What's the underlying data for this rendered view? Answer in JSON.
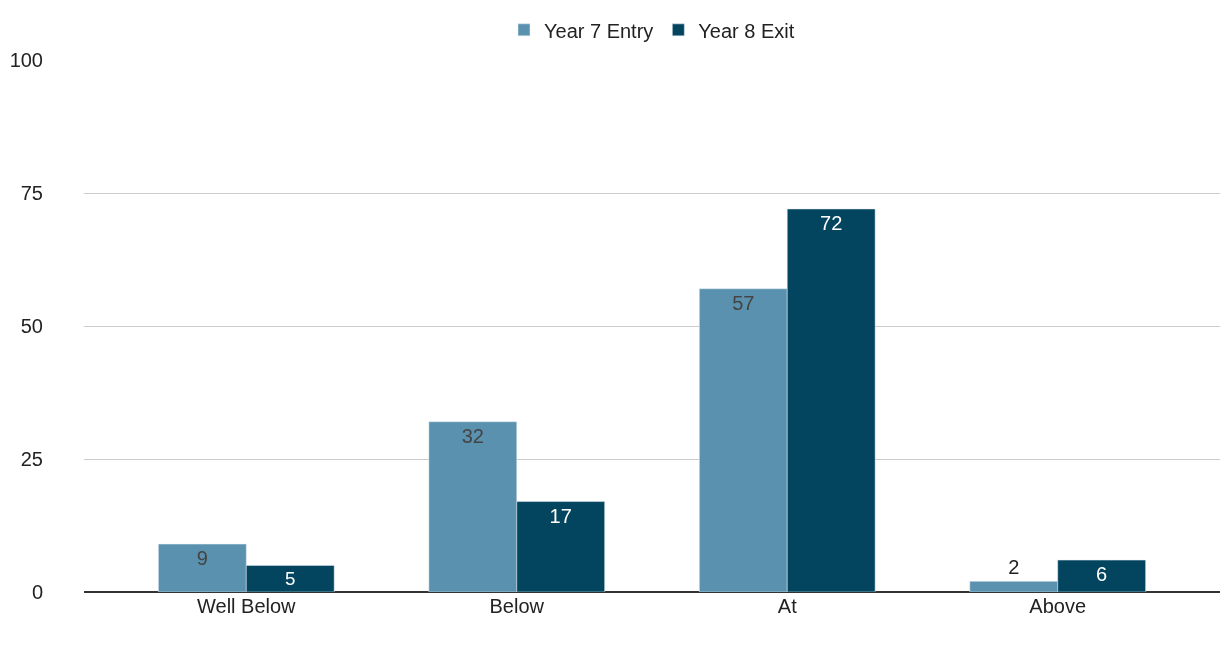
{
  "chart_data": {
    "type": "bar",
    "categories": [
      "Well Below",
      "Below",
      "At",
      "Above"
    ],
    "series": [
      {
        "name": "Year 7 Entry",
        "color": "#5a91ae",
        "values": [
          9,
          32,
          57,
          2
        ]
      },
      {
        "name": "Year 8 Exit",
        "color": "#03455f",
        "values": [
          5,
          17,
          72,
          6
        ]
      }
    ],
    "ylim": [
      0,
      100
    ],
    "yticks": [
      0,
      25,
      50,
      75,
      100
    ],
    "grid": "y",
    "legend": "top",
    "data_labels": true
  }
}
